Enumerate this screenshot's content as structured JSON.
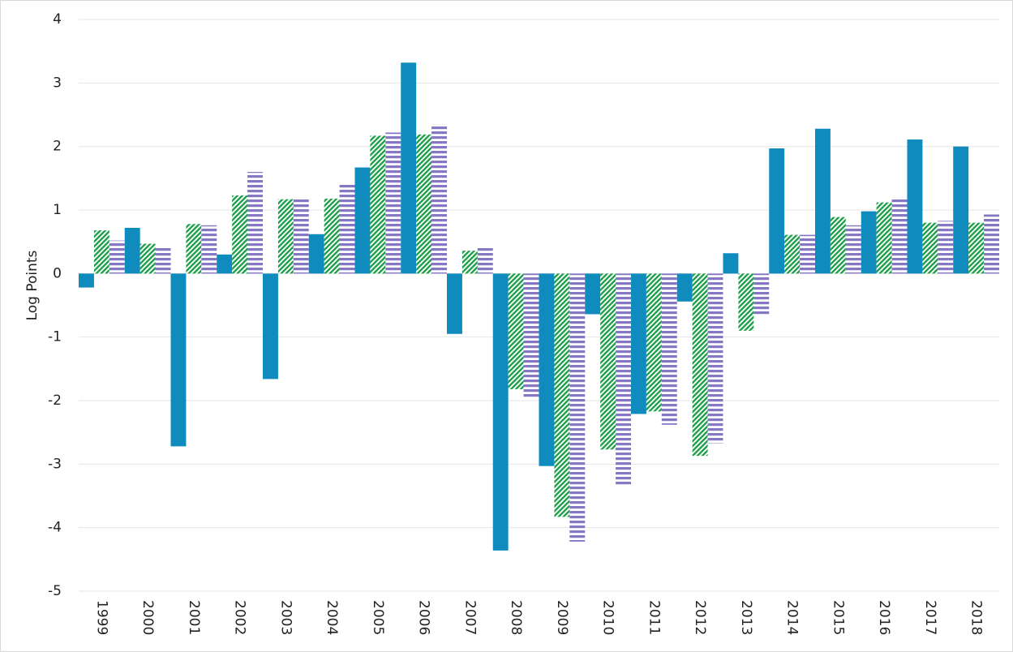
{
  "chart_data": {
    "type": "bar",
    "y_label": "Log Points",
    "categories": [
      "1999",
      "2000",
      "2001",
      "2002",
      "2003",
      "2004",
      "2005",
      "2006",
      "2007",
      "2008",
      "2009",
      "2010",
      "2011",
      "2012",
      "2013",
      "2014",
      "2015",
      "2016",
      "2017",
      "2018"
    ],
    "series": [
      {
        "color": "#0f8bbd",
        "pattern": "solid",
        "values": [
          -0.22,
          0.72,
          -2.72,
          0.3,
          -1.66,
          0.62,
          1.67,
          3.32,
          -0.95,
          -4.36,
          -3.03,
          -0.64,
          -2.21,
          -0.44,
          0.32,
          1.97,
          2.28,
          0.98,
          2.11,
          2.0
        ]
      },
      {
        "color": "#22a04e",
        "pattern": "diagonal",
        "values": [
          0.68,
          0.47,
          0.78,
          1.23,
          1.17,
          1.18,
          2.17,
          2.19,
          0.36,
          -1.82,
          -3.83,
          -2.77,
          -2.17,
          -2.87,
          -0.9,
          0.61,
          0.89,
          1.12,
          0.8,
          0.8
        ]
      },
      {
        "color": "#8677c4",
        "pattern": "horizontal",
        "values": [
          0.52,
          0.4,
          0.76,
          1.6,
          1.2,
          1.4,
          2.22,
          2.35,
          0.4,
          -1.97,
          -4.22,
          -3.35,
          -2.38,
          -2.67,
          -0.66,
          0.61,
          0.76,
          1.2,
          0.83,
          0.93
        ]
      }
    ],
    "ylim": [
      -5,
      4
    ],
    "yticks": [
      -5,
      -4,
      -3,
      -2,
      -1,
      0,
      1,
      2,
      3,
      4
    ],
    "grid": true
  }
}
